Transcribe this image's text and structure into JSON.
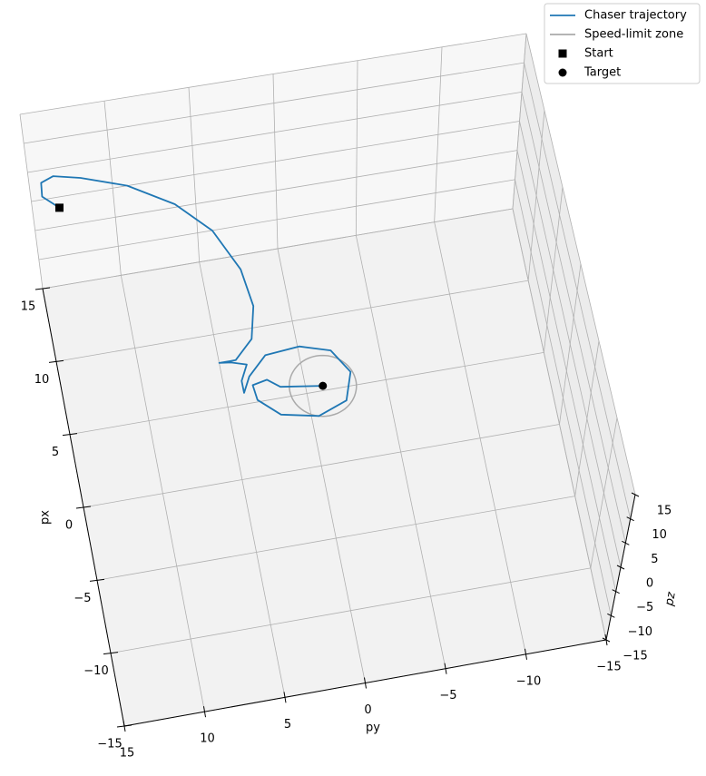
{
  "chart_data": {
    "type": "line3d",
    "xlabel": "px",
    "ylabel": "py",
    "zlabel": "pz",
    "xlim": [
      -15,
      15
    ],
    "ylim": [
      -15,
      15
    ],
    "zlim": [
      -15,
      15
    ],
    "xticks": [
      {
        "value": -15,
        "label": "−15"
      },
      {
        "value": -10,
        "label": "−10"
      },
      {
        "value": -5,
        "label": "−5"
      },
      0,
      5,
      10,
      15
    ],
    "yticks": [
      {
        "value": -15,
        "label": "−15"
      },
      {
        "value": -10,
        "label": "−10"
      },
      {
        "value": -5,
        "label": "−5"
      },
      0,
      5,
      10,
      15
    ],
    "zticks": [
      {
        "value": -15,
        "label": "−15"
      },
      {
        "value": -10,
        "label": "−10"
      },
      {
        "value": -5,
        "label": "−5"
      },
      0,
      5,
      10,
      15
    ],
    "grid": true,
    "legend": "upper right",
    "series": [
      {
        "name": "Chaser trajectory",
        "color": "#1f77b4",
        "x": [
          14.3,
          15.2,
          16.1,
          16.4,
          16.0,
          15.0,
          13.3,
          11.2,
          8.4,
          5.9,
          3.8,
          2.6,
          2.6,
          2.5,
          2.2,
          1.2,
          0.4,
          1.4,
          2.6,
          2.8,
          2.2,
          0.6,
          -1.2,
          -1.9,
          -1.4,
          -0.2,
          0.8,
          1.0,
          0.4,
          0
        ],
        "y": [
          13.4,
          14.3,
          14.2,
          13.4,
          11.8,
          9.1,
          6.5,
          4.6,
          3.4,
          3.1,
          3.6,
          4.8,
          5.8,
          5.1,
          4.2,
          4.7,
          4.7,
          4.2,
          3.0,
          0.9,
          -0.9,
          -1.8,
          -1.2,
          0.6,
          2.8,
          4.0,
          4.1,
          3.2,
          2.5,
          0
        ],
        "z": [
          0,
          0,
          0,
          0,
          0,
          0,
          0,
          0,
          0,
          0,
          0,
          0,
          0,
          0,
          0,
          0,
          0,
          0,
          0,
          0,
          0,
          0,
          0,
          0,
          0,
          0,
          0,
          0,
          0,
          0
        ]
      }
    ],
    "zone": {
      "name": "Speed-limit zone",
      "color": "#aaaaaa",
      "radius": 2
    },
    "points": [
      {
        "name": "Start",
        "marker": "square",
        "color": "#000000",
        "x": 14.3,
        "y": 13.4,
        "z": 0
      },
      {
        "name": "Target",
        "marker": "circle",
        "color": "#000000",
        "x": 0,
        "y": 0,
        "z": 0
      }
    ]
  }
}
